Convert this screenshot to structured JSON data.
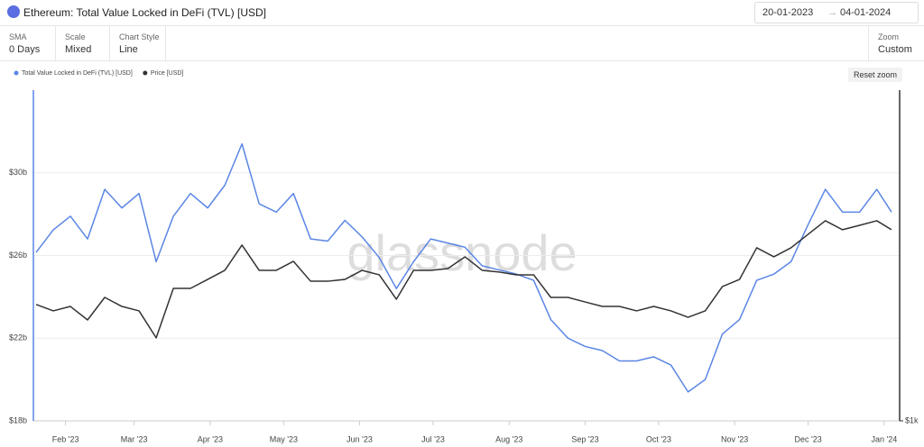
{
  "ui": {
    "sma_label": "SMA",
    "sma_value": "0 Days",
    "scale_label": "Scale",
    "scale_value": "Mixed",
    "style_label": "Chart Style",
    "style_value": "Line",
    "zoom_label": "Zoom",
    "zoom_value": "Custom",
    "date_from": "20-01-2023",
    "date_to": "04-01-2024",
    "reset": "Reset zoom",
    "watermark": "glassnode"
  },
  "chart_data": {
    "type": "line",
    "title": "Ethereum: Total Value Locked in DeFi (TVL) [USD]",
    "x": [
      "2023-01-20",
      "2023-01-27",
      "2023-02-03",
      "2023-02-10",
      "2023-02-17",
      "2023-02-24",
      "2023-03-03",
      "2023-03-10",
      "2023-03-17",
      "2023-03-24",
      "2023-03-31",
      "2023-04-07",
      "2023-04-14",
      "2023-04-21",
      "2023-04-28",
      "2023-05-05",
      "2023-05-12",
      "2023-05-19",
      "2023-05-26",
      "2023-06-02",
      "2023-06-09",
      "2023-06-16",
      "2023-06-23",
      "2023-06-30",
      "2023-07-07",
      "2023-07-14",
      "2023-07-21",
      "2023-07-28",
      "2023-08-04",
      "2023-08-11",
      "2023-08-18",
      "2023-08-25",
      "2023-09-01",
      "2023-09-08",
      "2023-09-15",
      "2023-09-22",
      "2023-09-29",
      "2023-10-06",
      "2023-10-13",
      "2023-10-20",
      "2023-10-27",
      "2023-11-03",
      "2023-11-10",
      "2023-11-17",
      "2023-11-24",
      "2023-12-01",
      "2023-12-08",
      "2023-12-15",
      "2023-12-22",
      "2023-12-29",
      "2024-01-04"
    ],
    "series": [
      {
        "name": "Total Value Locked in DeFi (TVL) [USD]",
        "color": "#5b86e5",
        "axis": "y",
        "values": [
          26.15,
          27.24,
          27.9,
          26.8,
          29.2,
          28.3,
          29.0,
          25.7,
          27.9,
          29.0,
          28.3,
          29.4,
          31.4,
          28.5,
          28.1,
          29.0,
          26.8,
          26.7,
          27.7,
          26.9,
          25.9,
          24.4,
          25.7,
          26.8,
          26.6,
          26.4,
          25.5,
          25.3,
          25.1,
          24.8,
          22.9,
          22.0,
          21.6,
          21.4,
          20.9,
          20.9,
          21.1,
          20.7,
          19.4,
          20.0,
          22.2,
          22.9,
          24.8,
          25.1,
          25.7,
          27.5,
          29.2,
          28.1,
          28.1,
          29.2,
          28.1
        ]
      },
      {
        "name": "Price [USD]",
        "color": "#333333",
        "axis": "y2",
        "values": [
          1600,
          1559,
          1587,
          1503,
          1646,
          1587,
          1559,
          1398,
          1707,
          1707,
          1770,
          1836,
          2033,
          1836,
          1836,
          1904,
          1757,
          1757,
          1770,
          1836,
          1803,
          1634,
          1836,
          1836,
          1849,
          1939,
          1836,
          1823,
          1803,
          1803,
          1646,
          1646,
          1616,
          1587,
          1587,
          1559,
          1587,
          1559,
          1519,
          1559,
          1720,
          1770,
          2011,
          1939,
          2011,
          2124,
          2243,
          2163,
          2202,
          2243,
          2163
        ]
      }
    ],
    "xlim": [
      "2023-01-20",
      "2024-01-04"
    ],
    "xticks": [
      {
        "value": "2023-02-01",
        "label": "Feb '23"
      },
      {
        "value": "2023-03-01",
        "label": "Mar '23"
      },
      {
        "value": "2023-04-01",
        "label": "Apr '23"
      },
      {
        "value": "2023-05-01",
        "label": "May '23"
      },
      {
        "value": "2023-06-01",
        "label": "Jun '23"
      },
      {
        "value": "2023-07-01",
        "label": "Jul '23"
      },
      {
        "value": "2023-08-01",
        "label": "Aug '23"
      },
      {
        "value": "2023-09-01",
        "label": "Sep '23"
      },
      {
        "value": "2023-10-01",
        "label": "Oct '23"
      },
      {
        "value": "2023-11-01",
        "label": "Nov '23"
      },
      {
        "value": "2023-12-01",
        "label": "Dec '23"
      },
      {
        "value": "2024-01-01",
        "label": "Jan '24"
      }
    ],
    "ylim": [
      18,
      34
    ],
    "yticks": [
      {
        "value": 18,
        "label": "$18b"
      },
      {
        "value": 22,
        "label": "$22b"
      },
      {
        "value": 26,
        "label": "$26b"
      },
      {
        "value": 30,
        "label": "$30b"
      }
    ],
    "y2lim": [
      1000,
      3800
    ],
    "y2scale": "log",
    "y2ticks": [
      {
        "value": 1000,
        "label": "$1k"
      }
    ],
    "grid": true
  }
}
